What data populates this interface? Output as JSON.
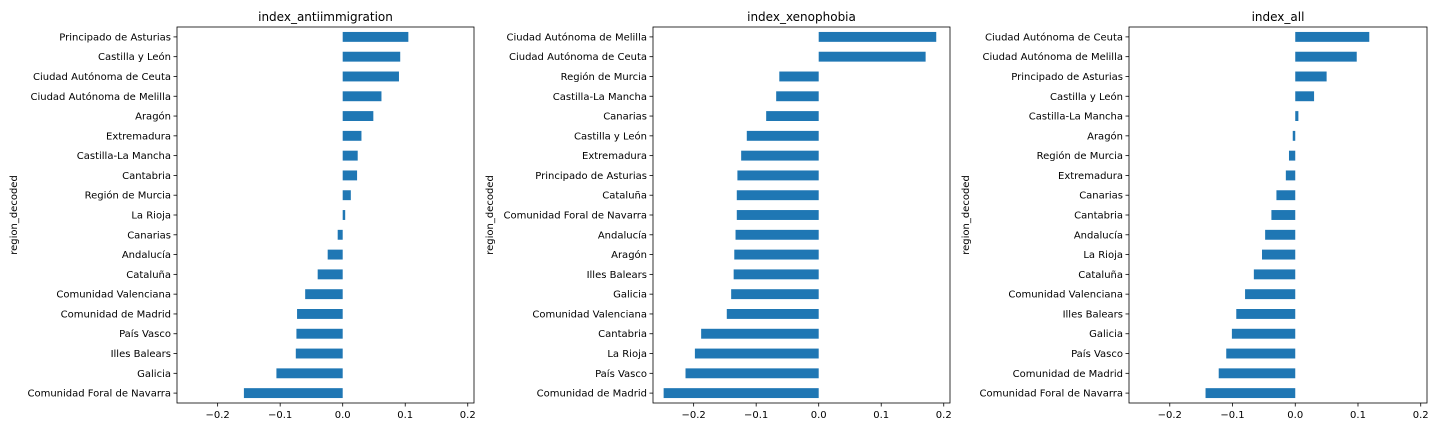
{
  "chart_data": [
    {
      "type": "bar",
      "orientation": "horizontal",
      "title": "index_antiimmigration",
      "ylabel": "region_decoded",
      "xlim": [
        -0.265,
        0.21
      ],
      "xticks": [
        -0.2,
        -0.1,
        0.0,
        0.1,
        0.2
      ],
      "xtick_labels": [
        "−0.2",
        "−0.1",
        "0.0",
        "0.1",
        "0.2"
      ],
      "bar_color": "#1f77b4",
      "grid": false,
      "categories": [
        "Principado de Asturias",
        "Castilla y León",
        "Ciudad Autónoma de Ceuta",
        "Ciudad Autónoma de Melilla",
        "Aragón",
        "Extremadura",
        "Castilla-La Mancha",
        "Cantabria",
        "Región de Murcia",
        "La Rioja",
        "Canarias",
        "Andalucía",
        "Cataluña",
        "Comunidad Valenciana",
        "Comunidad de Madrid",
        "País Vasco",
        "Illes Balears",
        "Galicia",
        "Comunidad Foral de Navarra"
      ],
      "values": [
        0.105,
        0.092,
        0.09,
        0.062,
        0.049,
        0.03,
        0.024,
        0.023,
        0.013,
        0.004,
        -0.008,
        -0.024,
        -0.04,
        -0.06,
        -0.073,
        -0.074,
        -0.075,
        -0.106,
        -0.158
      ]
    },
    {
      "type": "bar",
      "orientation": "horizontal",
      "title": "index_xenophobia",
      "ylabel": "region_decoded",
      "xlim": [
        -0.265,
        0.21
      ],
      "xticks": [
        -0.2,
        -0.1,
        0.0,
        0.1,
        0.2
      ],
      "xtick_labels": [
        "−0.2",
        "−0.1",
        "0.0",
        "0.1",
        "0.2"
      ],
      "bar_color": "#1f77b4",
      "grid": false,
      "categories": [
        "Ciudad Autónoma de Melilla",
        "Ciudad Autónoma de Ceuta",
        "Región de Murcia",
        "Castilla-La Mancha",
        "Canarias",
        "Castilla y León",
        "Extremadura",
        "Principado de Asturias",
        "Cataluña",
        "Comunidad Foral de Navarra",
        "Andalucía",
        "Aragón",
        "Illes Balears",
        "Galicia",
        "Comunidad Valenciana",
        "Cantabria",
        "La Rioja",
        "País Vasco",
        "Comunidad de Madrid"
      ],
      "values": [
        0.188,
        0.171,
        -0.063,
        -0.068,
        -0.084,
        -0.115,
        -0.124,
        -0.13,
        -0.131,
        -0.131,
        -0.133,
        -0.135,
        -0.136,
        -0.14,
        -0.147,
        -0.188,
        -0.198,
        -0.213,
        -0.248
      ]
    },
    {
      "type": "bar",
      "orientation": "horizontal",
      "title": "index_all",
      "ylabel": "region_decoded",
      "xlim": [
        -0.265,
        0.21
      ],
      "xticks": [
        -0.2,
        -0.1,
        0.0,
        0.1,
        0.2
      ],
      "xtick_labels": [
        "−0.2",
        "−0.1",
        "0.0",
        "0.1",
        "0.2"
      ],
      "bar_color": "#1f77b4",
      "grid": false,
      "categories": [
        "Ciudad Autónoma de Ceuta",
        "Ciudad Autónoma de Melilla",
        "Principado de Asturias",
        "Castilla y León",
        "Castilla-La Mancha",
        "Aragón",
        "Región de Murcia",
        "Extremadura",
        "Canarias",
        "Cantabria",
        "Andalucía",
        "La Rioja",
        "Cataluña",
        "Comunidad Valenciana",
        "Illes Balears",
        "Galicia",
        "País Vasco",
        "Comunidad de Madrid",
        "Comunidad Foral de Navarra"
      ],
      "values": [
        0.118,
        0.098,
        0.05,
        0.03,
        0.005,
        -0.004,
        -0.01,
        -0.015,
        -0.03,
        -0.038,
        -0.048,
        -0.053,
        -0.066,
        -0.08,
        -0.094,
        -0.101,
        -0.11,
        -0.122,
        -0.143
      ]
    }
  ]
}
